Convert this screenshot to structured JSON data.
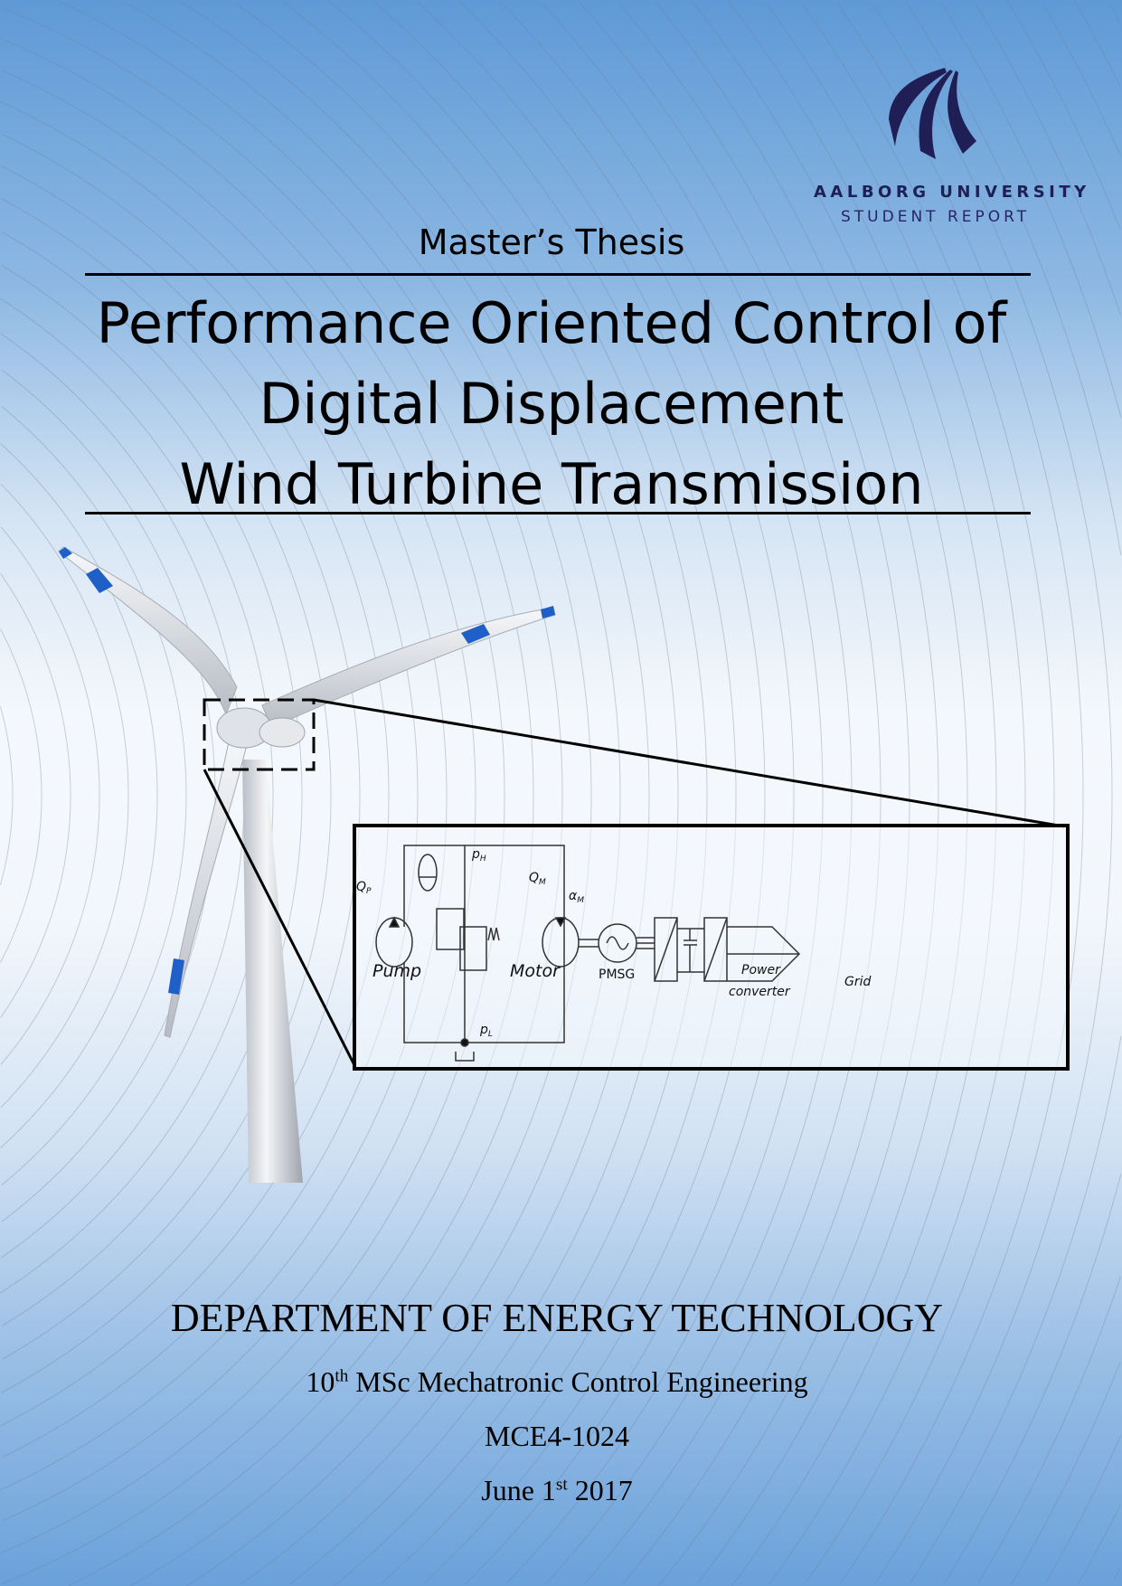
{
  "logo": {
    "name": "AALBORG UNIVERSITY",
    "subtitle": "STUDENT REPORT",
    "color": "#1f1f55"
  },
  "document_type": "Master’s Thesis",
  "title_lines": [
    "Performance Oriented Control of",
    "Digital Displacement",
    "Wind Turbine Transmission"
  ],
  "diagram": {
    "labels": {
      "qp": "Q",
      "qp_sub": "P",
      "ph": "p",
      "ph_sub": "H",
      "pl": "p",
      "pl_sub": "L",
      "qm": "Q",
      "qm_sub": "M",
      "alpha": "α",
      "alpha_sub": "M",
      "pump": "Pump",
      "motor": "Motor",
      "pmsg": "PMSG",
      "power1": "Power",
      "power2": "converter",
      "grid": "Grid"
    }
  },
  "footer": {
    "department": "DEPARTMENT OF ENERGY TECHNOLOGY",
    "programme_num": "10",
    "programme_sup": "th",
    "programme": " MSc Mechatronic Control Engineering",
    "group": "MCE4-1024",
    "date_pre": "June 1",
    "date_sup": "st",
    "date_post": " 2017"
  },
  "colors": {
    "background_top": "#5f9ad6",
    "background_mid": "#f4f8fc",
    "blade_accent": "#1f5fc8"
  }
}
